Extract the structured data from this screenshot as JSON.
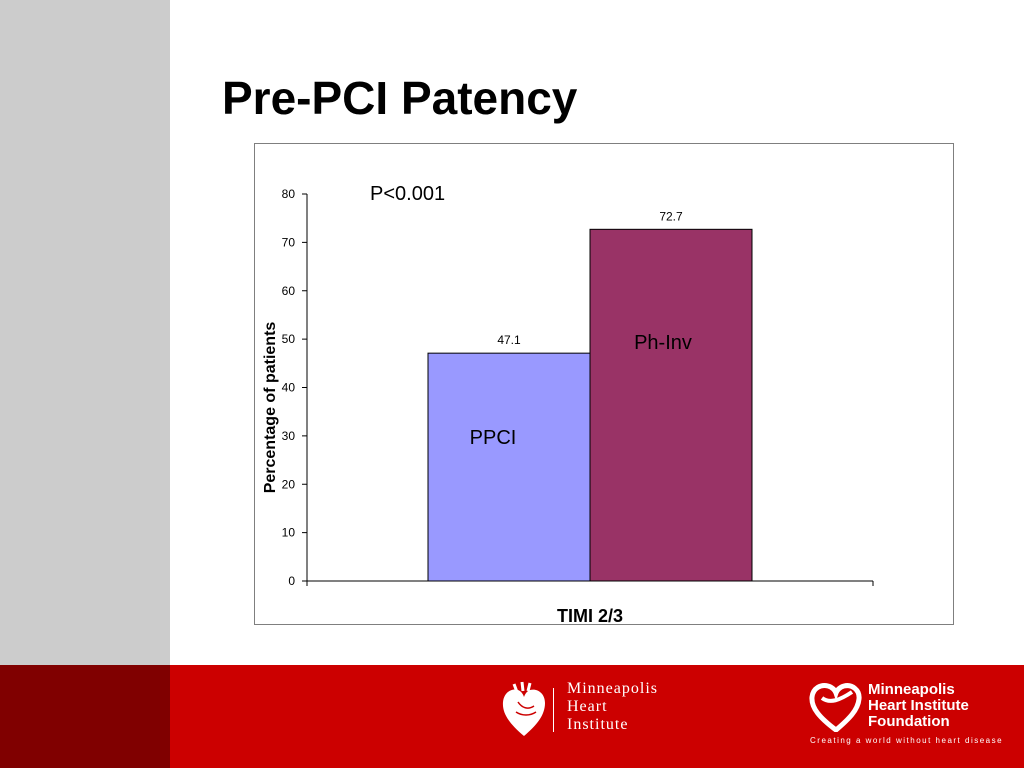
{
  "slide": {
    "title": "Pre-PCI Patency"
  },
  "colors": {
    "left_stripe": "#cccccc",
    "footer_dark": "#800000",
    "footer_red": "#cc0000",
    "bar_ppci": "#9999ff",
    "bar_phinv": "#993366"
  },
  "chart_data": {
    "type": "bar",
    "categories": [
      "TIMI 2/3"
    ],
    "series": [
      {
        "name": "PPCI",
        "values": [
          47.1
        ],
        "color": "#9999ff"
      },
      {
        "name": "Ph-Inv",
        "values": [
          72.7
        ],
        "color": "#993366"
      }
    ],
    "data_labels": [
      "47.1",
      "72.7"
    ],
    "xlabel": "TIMI 2/3",
    "ylabel": "Percentage of patients",
    "ylim": [
      0,
      80
    ],
    "yticks": [
      0,
      10,
      20,
      30,
      40,
      50,
      60,
      70,
      80
    ],
    "annotation": "P<0.001",
    "grid": false,
    "legend": "none"
  },
  "footer": {
    "mhi_logo": {
      "icon": "heart-icon",
      "lines": [
        "Minneapolis",
        "Heart",
        "Institute"
      ]
    },
    "mhif_logo": {
      "icon": "heart-ribbon-icon",
      "lines": [
        "Minneapolis",
        "Heart Institute",
        "Foundation"
      ],
      "tagline": "Creating a world without heart disease"
    }
  }
}
